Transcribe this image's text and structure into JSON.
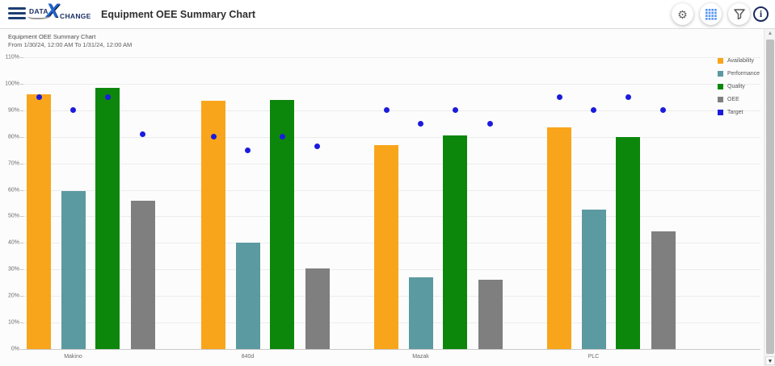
{
  "header": {
    "logo": {
      "prefix": "DATA",
      "x": "X",
      "suffix": "CHANGE"
    },
    "title": "Equipment OEE Summary Chart"
  },
  "chart": {
    "title": "Equipment OEE Summary Chart",
    "subtitle": "From 1/30/24, 12:00 AM To 1/31/24, 12:00 AM"
  },
  "chart_data": {
    "type": "bar",
    "title": "Equipment OEE Summary Chart",
    "subtitle": "From 1/30/24, 12:00 AM To 1/31/24, 12:00 AM",
    "categories": [
      "Makino",
      "840d",
      "Mazak",
      "PLC"
    ],
    "series": [
      {
        "name": "Availability",
        "color": "#F9A51B",
        "values": [
          96,
          93.5,
          77,
          83.5
        ]
      },
      {
        "name": "Performance",
        "color": "#5B9AA0",
        "values": [
          59.5,
          40,
          27,
          52.5
        ]
      },
      {
        "name": "Quality",
        "color": "#0C870C",
        "values": [
          98.5,
          94,
          80.5,
          80
        ]
      },
      {
        "name": "OEE",
        "color": "#7F7F7F",
        "values": [
          56,
          30.5,
          26,
          44.5
        ]
      }
    ],
    "point_series": {
      "name": "Target",
      "color": "#1B1BDD",
      "values_per_category_per_metric": [
        [
          95,
          90,
          95,
          81
        ],
        [
          80,
          75,
          80,
          76.5
        ],
        [
          90,
          85,
          90,
          85
        ],
        [
          95,
          90,
          95,
          90
        ]
      ]
    },
    "ylim": [
      0,
      110
    ],
    "ytick_step": 10,
    "ytick_suffix": "%",
    "grid": true,
    "legend_position": "top-right",
    "legend": [
      "Availability",
      "Performance",
      "Quality",
      "OEE",
      "Target"
    ]
  }
}
